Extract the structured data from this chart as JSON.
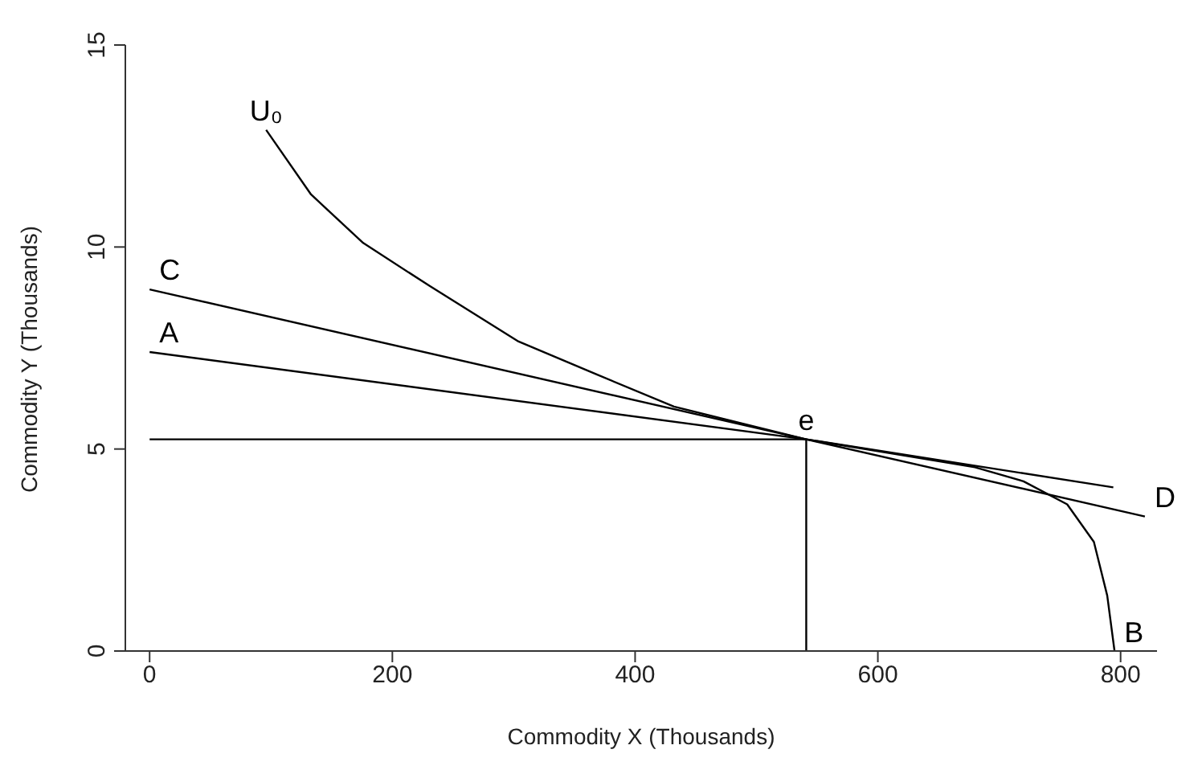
{
  "chart_data": {
    "type": "line",
    "xlabel": "Commodity X (Thousands)",
    "ylabel": "Commodity Y (Thousands)",
    "xlim": [
      -20,
      830
    ],
    "xticks": [
      0,
      200,
      400,
      600,
      800
    ],
    "ylim": [
      0,
      15
    ],
    "yticks": [
      0,
      5,
      10,
      15
    ],
    "grid": false,
    "marker": "none",
    "line_style": "solid",
    "series": [
      {
        "color": "#000000",
        "x": [
          96,
          133,
          176,
          231,
          304,
          368,
          432,
          541,
          620,
          680,
          720,
          756,
          778,
          789,
          795
        ],
        "values": [
          12.9,
          11.3,
          10.1,
          9.03,
          7.66,
          6.85,
          6.05,
          5.24,
          4.85,
          4.55,
          4.2,
          3.63,
          2.7,
          1.37,
          0
        ]
      },
      {
        "color": "#000000",
        "x": [
          0,
          541,
          820
        ],
        "values": [
          8.95,
          5.24,
          3.33
        ]
      },
      {
        "color": "#000000",
        "x": [
          0,
          541,
          794
        ],
        "values": [
          7.4,
          5.24,
          4.05
        ]
      },
      {
        "color": "#000000",
        "x": [
          0,
          541
        ],
        "values": [
          5.24,
          5.24
        ]
      },
      {
        "color": "#000000",
        "x": [
          541,
          541
        ],
        "values": [
          0,
          5.24
        ]
      }
    ],
    "annotations": [
      {
        "text": "U₀",
        "x": 96,
        "y": 12.9
      },
      {
        "text": "C",
        "x": 0,
        "y": 8.95
      },
      {
        "text": "A",
        "x": 0,
        "y": 7.4
      },
      {
        "text": "e",
        "x": 541,
        "y": 5.24
      },
      {
        "text": "D",
        "x": 820,
        "y": 3.33
      },
      {
        "text": "B",
        "x": 795,
        "y": 0
      }
    ]
  }
}
